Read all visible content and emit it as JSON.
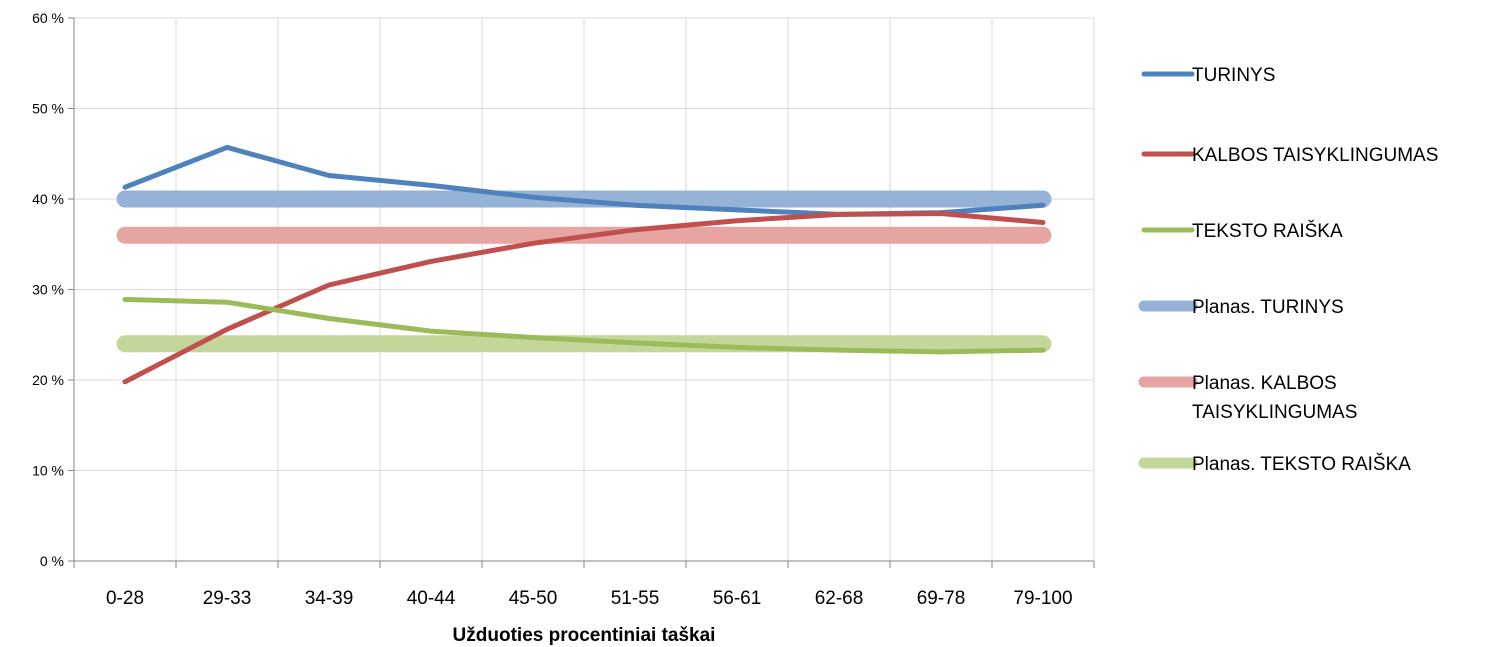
{
  "chart_data": {
    "type": "line",
    "title": "",
    "xlabel": "Užduoties procentiniai taškai",
    "ylabel": "",
    "ylim": [
      0,
      60
    ],
    "y_ticks": [
      "0 %",
      "10 %",
      "20 %",
      "30 %",
      "40 %",
      "50 %",
      "60 %"
    ],
    "y_tick_values": [
      0,
      10,
      20,
      30,
      40,
      50,
      60
    ],
    "grid": true,
    "legend_position": "right",
    "categories": [
      "0-28",
      "29-33",
      "34-39",
      "40-44",
      "45-50",
      "51-55",
      "56-61",
      "62-68",
      "69-78",
      "79-100"
    ],
    "series": [
      {
        "name": "TURINYS",
        "color": "#4f81bd",
        "style": "thin",
        "values": [
          41.3,
          45.7,
          42.6,
          41.5,
          40.2,
          39.3,
          38.8,
          38.3,
          38.5,
          39.3
        ]
      },
      {
        "name": "KALBOS TAISYKLINGUMAS",
        "color": "#c0504d",
        "style": "thin",
        "values": [
          19.8,
          25.6,
          30.5,
          33.1,
          35.1,
          36.6,
          37.6,
          38.3,
          38.4,
          37.4
        ]
      },
      {
        "name": "TEKSTO RAIŠKA",
        "color": "#9bbb59",
        "style": "thin",
        "values": [
          28.9,
          28.6,
          26.8,
          25.4,
          24.7,
          24.1,
          23.6,
          23.3,
          23.1,
          23.3
        ]
      },
      {
        "name": "Planas. TURINYS",
        "color": "#95b3d7",
        "style": "thick",
        "values": [
          40,
          40,
          40,
          40,
          40,
          40,
          40,
          40,
          40,
          40
        ]
      },
      {
        "name": "Planas. KALBOS TAISYKLINGUMAS",
        "color": "#e6a5a3",
        "style": "thick",
        "values": [
          36,
          36,
          36,
          36,
          36,
          36,
          36,
          36,
          36,
          36
        ]
      },
      {
        "name": "Planas. TEKSTO RAIŠKA",
        "color": "#c4d79b",
        "style": "thick",
        "values": [
          24,
          24,
          24,
          24,
          24,
          24,
          24,
          24,
          24,
          24
        ]
      }
    ]
  }
}
